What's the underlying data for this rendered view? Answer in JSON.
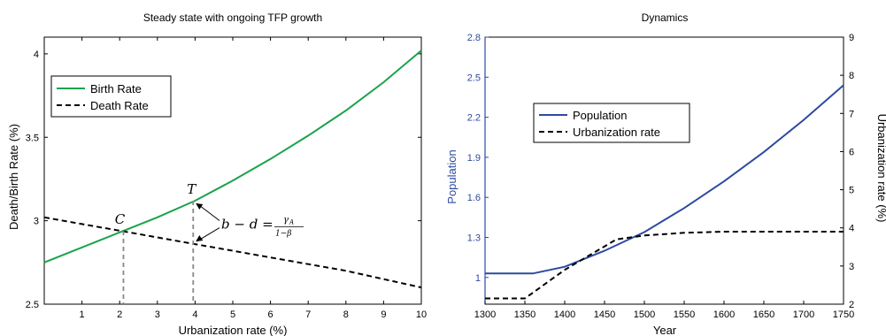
{
  "chart_data": [
    {
      "type": "line",
      "title": "Steady state with ongoing TFP growth",
      "xlabel": "Urbanization rate (%)",
      "ylabel": "Death/Birth Rate (%)",
      "xlim": [
        0,
        10
      ],
      "ylim": [
        2.5,
        4.1
      ],
      "xticks": [
        1,
        2,
        3,
        4,
        5,
        6,
        7,
        8,
        9,
        10
      ],
      "yticks": [
        2.5,
        3,
        3.5,
        4
      ],
      "legend_position": "upper-left",
      "series": [
        {
          "name": "Birth Rate",
          "style": "solid",
          "color": "#1aa34a",
          "x": [
            0,
            1,
            2,
            3,
            4,
            5,
            6,
            7,
            8,
            9,
            10
          ],
          "values": [
            2.75,
            2.84,
            2.93,
            3.02,
            3.12,
            3.24,
            3.37,
            3.51,
            3.66,
            3.83,
            4.02
          ]
        },
        {
          "name": "Death Rate",
          "style": "dashed",
          "color": "#000000",
          "x": [
            0,
            1,
            2,
            3,
            4,
            5,
            6,
            7,
            8,
            9,
            10
          ],
          "values": [
            3.02,
            2.98,
            2.94,
            2.9,
            2.86,
            2.82,
            2.78,
            2.74,
            2.7,
            2.65,
            2.6
          ]
        }
      ],
      "annotations": [
        {
          "label": "C",
          "x": 2.1,
          "y": 2.94
        },
        {
          "label": "T",
          "x": 3.95,
          "y": 3.12
        },
        {
          "label": "b − d = γA / (1−β)"
        }
      ]
    },
    {
      "type": "line",
      "title": "Dynamics",
      "xlabel": "Year",
      "ylabel_left": "Population",
      "ylabel_right": "Urbanization rate (%)",
      "xlim": [
        1300,
        1750
      ],
      "ylim_left": [
        0.8,
        2.8
      ],
      "ylim_right": [
        2,
        9
      ],
      "xticks": [
        1300,
        1350,
        1400,
        1450,
        1500,
        1550,
        1600,
        1650,
        1700,
        1750
      ],
      "yticks_left": [
        1,
        1.3,
        1.6,
        1.9,
        2.2,
        2.5,
        2.8
      ],
      "yticks_right": [
        2,
        3,
        4,
        5,
        6,
        7,
        8,
        9
      ],
      "legend_position": "upper-left",
      "series": [
        {
          "name": "Population",
          "axis": "left",
          "style": "solid",
          "color": "#2e4aa0",
          "x": [
            1300,
            1350,
            1360,
            1400,
            1450,
            1500,
            1550,
            1600,
            1650,
            1700,
            1750
          ],
          "values": [
            1.03,
            1.03,
            1.03,
            1.08,
            1.2,
            1.34,
            1.52,
            1.72,
            1.94,
            2.18,
            2.44
          ]
        },
        {
          "name": "Urbanization rate",
          "axis": "right",
          "style": "dashed",
          "color": "#000000",
          "x": [
            1300,
            1350,
            1360,
            1400,
            1465,
            1500,
            1550,
            1600,
            1650,
            1700,
            1750
          ],
          "values": [
            2.15,
            2.15,
            2.3,
            2.9,
            3.7,
            3.8,
            3.87,
            3.9,
            3.9,
            3.9,
            3.9
          ]
        }
      ]
    }
  ],
  "colors": {
    "birth": "#1aa34a",
    "death": "#000000",
    "population": "#2e4aa0",
    "urban": "#000000",
    "left_axis_text": "#2e4aa0"
  }
}
